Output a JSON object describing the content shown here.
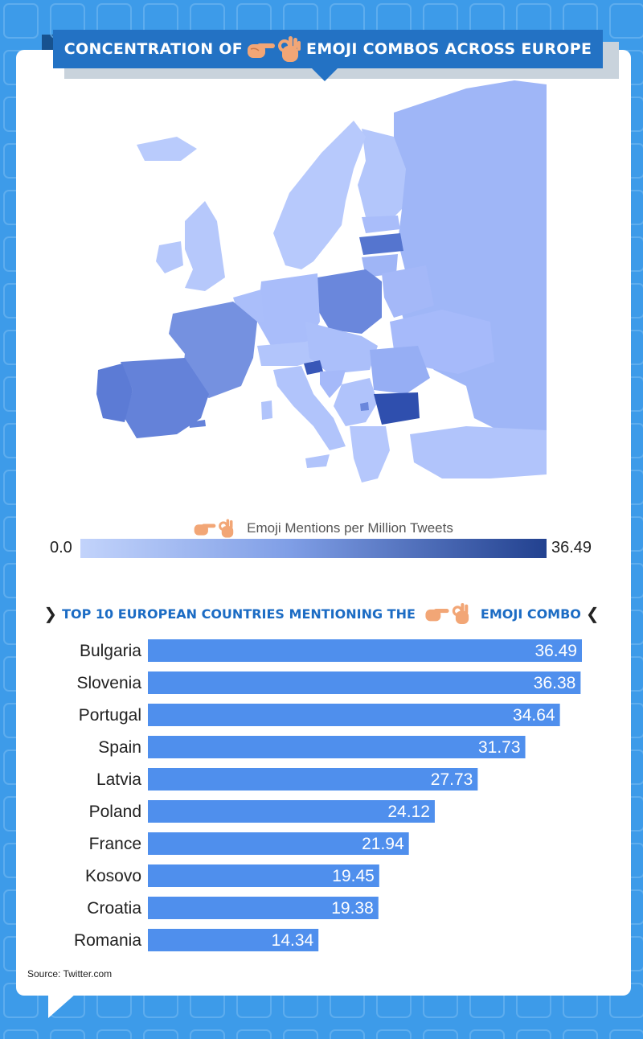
{
  "title": {
    "before": "CONCENTRATION OF",
    "after": "EMOJI COMBOS ACROSS EUROPE"
  },
  "emoji_icons": [
    "backhand-index-pointing-right-icon",
    "ok-hand-icon"
  ],
  "map": {
    "legend_label": "Emoji Mentions per Million Tweets",
    "legend_min": "0.0",
    "legend_max": "36.49",
    "scale_colors": [
      "#c2d3fb",
      "#7f9ee6",
      "#22418f"
    ]
  },
  "section": {
    "before": "TOP 10 EUROPEAN COUNTRIES MENTIONING THE",
    "after": "EMOJI COMBO"
  },
  "source": "Source: Twitter.com",
  "colors": {
    "background": "#3d9be9",
    "banner": "#2372c4",
    "bar": "#4f8fed",
    "section_title": "#1c6cc4"
  },
  "chart_data": {
    "type": "bar",
    "orientation": "horizontal",
    "categories": [
      "Bulgaria",
      "Slovenia",
      "Portugal",
      "Spain",
      "Latvia",
      "Poland",
      "France",
      "Kosovo",
      "Croatia",
      "Romania"
    ],
    "values": [
      36.49,
      36.38,
      34.64,
      31.73,
      27.73,
      24.12,
      21.94,
      19.45,
      19.38,
      14.34
    ],
    "value_labels": [
      "36.49",
      "36.38",
      "34.64",
      "31.73",
      "27.73",
      "24.12",
      "21.94",
      "19.45",
      "19.38",
      "14.34"
    ],
    "xlim": [
      0,
      36.49
    ],
    "title": "",
    "xlabel": "",
    "ylabel": "",
    "grid": false
  }
}
